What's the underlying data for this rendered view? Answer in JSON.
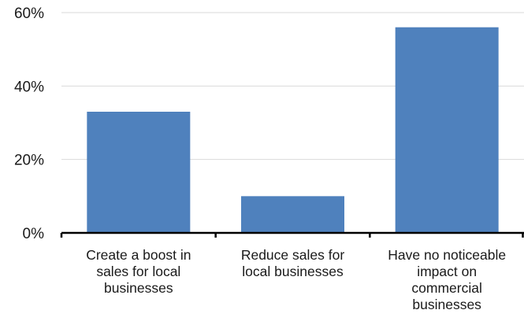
{
  "chart_data": {
    "type": "bar",
    "title": "",
    "xlabel": "",
    "ylabel": "",
    "categories": [
      [
        "Create a boost in",
        "sales for local",
        "businesses"
      ],
      [
        "Reduce sales for",
        "local businesses"
      ],
      [
        "Have no noticeable",
        "impact on",
        "commercial",
        "businesses"
      ]
    ],
    "values": [
      33,
      10,
      56
    ],
    "ylim": [
      0,
      60
    ],
    "yticks": [
      0,
      20,
      40,
      60
    ],
    "ytick_format": "%",
    "grid": true,
    "legend": "none",
    "bar_color": "#4f81bd",
    "grid_color": "#d9d9d9",
    "axis_color": "#000000"
  }
}
